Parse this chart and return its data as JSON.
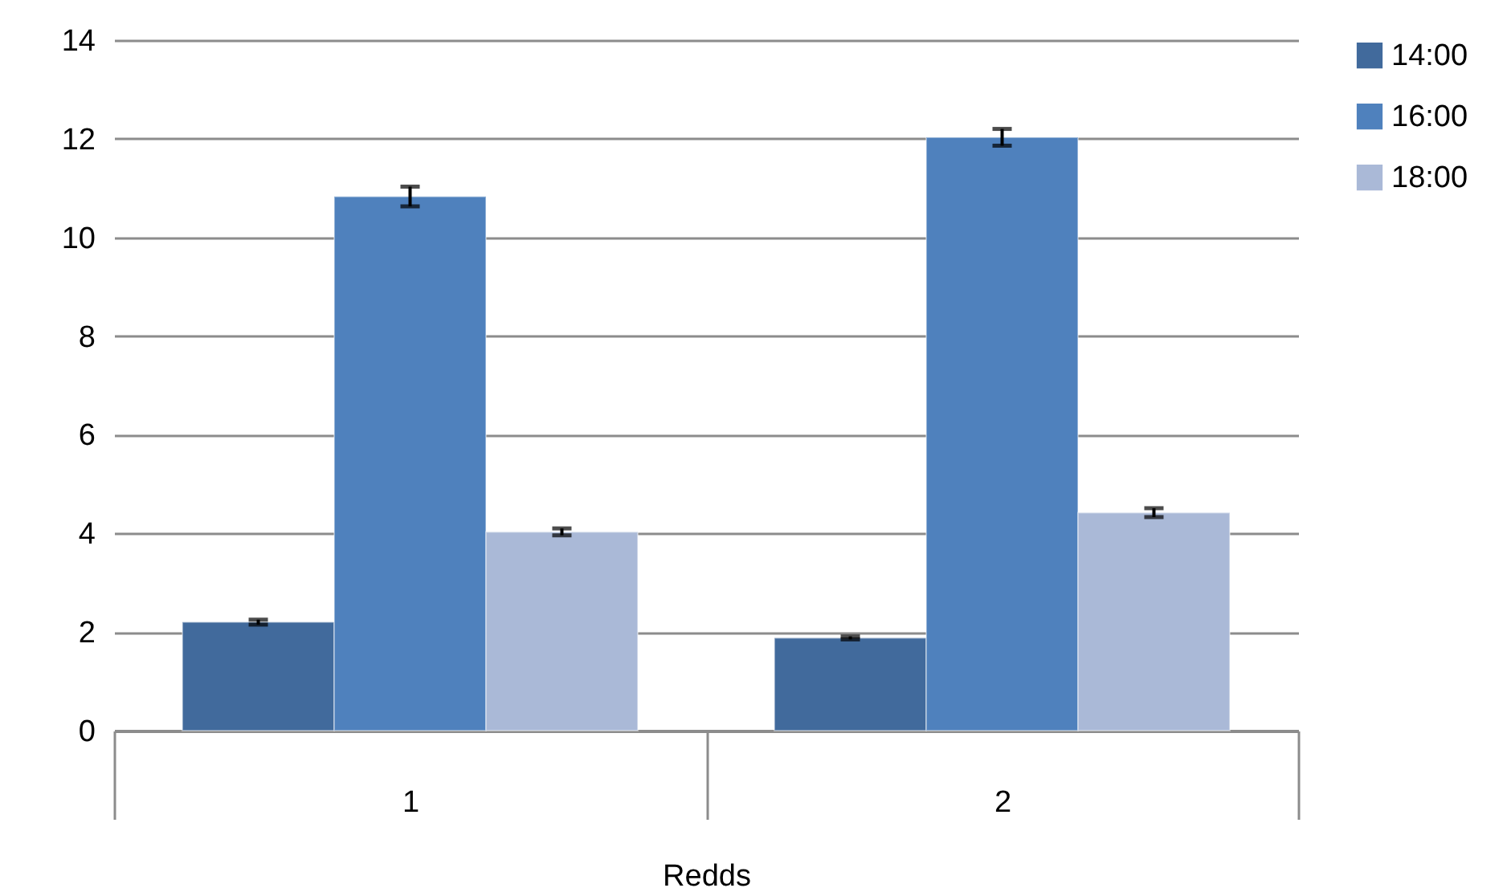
{
  "chart_data": {
    "type": "bar",
    "xlabel": "Redds",
    "categories": [
      "1",
      "2"
    ],
    "series": [
      {
        "name": "14:00",
        "color": "#416a9c",
        "values": [
          2.2,
          1.88
        ],
        "errors": [
          0.05,
          0.03
        ]
      },
      {
        "name": "16:00",
        "color": "#4f81bd",
        "values": [
          10.83,
          12.03
        ],
        "errors": [
          0.2,
          0.17
        ]
      },
      {
        "name": "18:00",
        "color": "#aab9d7",
        "values": [
          4.03,
          4.42
        ],
        "errors": [
          0.07,
          0.09
        ]
      }
    ],
    "ylim": [
      0,
      14
    ],
    "yticks": [
      0,
      2,
      4,
      6,
      8,
      10,
      12,
      14
    ],
    "grid": "y",
    "legend": "right"
  }
}
